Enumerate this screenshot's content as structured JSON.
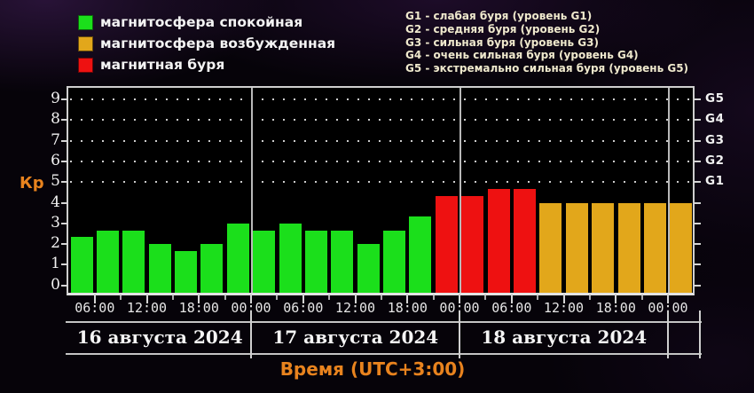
{
  "palette": {
    "quiet": "#1bdf1b",
    "excited": "#e2a71b",
    "storm": "#ee1111",
    "accent_orange": "#e8831e",
    "axis_line": "#cfcfcf"
  },
  "legend": {
    "items": [
      {
        "label": "магнитосфера спокойная",
        "level": "quiet"
      },
      {
        "label": "магнитосфера возбужденная",
        "level": "excited"
      },
      {
        "label": "магнитная буря",
        "level": "storm"
      }
    ]
  },
  "storm_levels": [
    "G1 - слабая буря (уровень G1)",
    "G2 - средняя буря (уровень G2)",
    "G3 - сильная буря (уровень G3)",
    "G4 - очень сильная буря (уровень G4)",
    "G5 - экстремально сильная буря (уровень G5)"
  ],
  "axis": {
    "y_label": "Кр",
    "x_label": "Время (UTC+3:00)",
    "y_ticks": [
      "0",
      "1",
      "2",
      "3",
      "4",
      "5",
      "6",
      "7",
      "8",
      "9"
    ],
    "g_ticks": [
      "G1",
      "G2",
      "G3",
      "G4",
      "G5"
    ]
  },
  "days": [
    {
      "label": "16 августа 2024",
      "times": [
        "06:00",
        "12:00",
        "18:00",
        "00:00"
      ],
      "bars": [
        {
          "kp": 2.33,
          "level": "quiet"
        },
        {
          "kp": 2.67,
          "level": "quiet"
        },
        {
          "kp": 2.67,
          "level": "quiet"
        },
        {
          "kp": 2.0,
          "level": "quiet"
        },
        {
          "kp": 1.67,
          "level": "quiet"
        },
        {
          "kp": 2.0,
          "level": "quiet"
        },
        {
          "kp": 3.0,
          "level": "quiet"
        }
      ]
    },
    {
      "label": "17 августа 2024",
      "times": [
        "06:00",
        "12:00",
        "18:00",
        "00:00"
      ],
      "bars": [
        {
          "kp": 2.67,
          "level": "quiet"
        },
        {
          "kp": 3.0,
          "level": "quiet"
        },
        {
          "kp": 2.67,
          "level": "quiet"
        },
        {
          "kp": 2.67,
          "level": "quiet"
        },
        {
          "kp": 2.0,
          "level": "quiet"
        },
        {
          "kp": 2.67,
          "level": "quiet"
        },
        {
          "kp": 3.33,
          "level": "quiet"
        },
        {
          "kp": 4.33,
          "level": "storm"
        }
      ]
    },
    {
      "label": "18 августа 2024",
      "times": [
        "06:00",
        "12:00",
        "18:00",
        "00:00"
      ],
      "bars": [
        {
          "kp": 4.33,
          "level": "storm"
        },
        {
          "kp": 4.67,
          "level": "storm"
        },
        {
          "kp": 4.67,
          "level": "storm"
        },
        {
          "kp": 4.0,
          "level": "excited"
        },
        {
          "kp": 4.0,
          "level": "excited"
        },
        {
          "kp": 4.0,
          "level": "excited"
        },
        {
          "kp": 4.0,
          "level": "excited"
        },
        {
          "kp": 4.0,
          "level": "excited"
        }
      ]
    }
  ],
  "trailing_bars": [
    {
      "kp": 4.0,
      "level": "excited"
    }
  ],
  "chart_data": {
    "type": "bar",
    "title": "",
    "ylabel": "Кр",
    "xlabel": "Время (UTC+3:00)",
    "ylim": [
      0,
      9
    ],
    "bar_interval_hours": 3,
    "grid": "dotted horizontal lines at Kp 5-9",
    "legend_position": "top-left",
    "legend": [
      "магнитосфера спокойная",
      "магнитосфера возбужденная",
      "магнитная буря"
    ],
    "right_axis_map": {
      "G1": 5,
      "G2": 6,
      "G3": 7,
      "G4": 8,
      "G5": 9
    },
    "series": [
      {
        "date": "16 августа 2024",
        "first_bar_start": "03:00",
        "kp": [
          2.33,
          2.67,
          2.67,
          2.0,
          1.67,
          2.0,
          3.0
        ],
        "colors": [
          "green",
          "green",
          "green",
          "green",
          "green",
          "green",
          "green"
        ]
      },
      {
        "date": "17 августа 2024",
        "first_bar_start": "00:00",
        "kp": [
          2.67,
          3.0,
          2.67,
          2.67,
          2.0,
          2.67,
          3.33,
          4.33
        ],
        "colors": [
          "green",
          "green",
          "green",
          "green",
          "green",
          "green",
          "green",
          "red"
        ]
      },
      {
        "date": "18 августа 2024",
        "first_bar_start": "00:00",
        "kp": [
          4.33,
          4.67,
          4.67,
          4.0,
          4.0,
          4.0,
          4.0,
          4.0
        ],
        "colors": [
          "red",
          "red",
          "red",
          "yellow",
          "yellow",
          "yellow",
          "yellow",
          "yellow"
        ]
      },
      {
        "date": "",
        "first_bar_start": "00:00",
        "kp": [
          4.0
        ],
        "colors": [
          "yellow"
        ]
      }
    ]
  }
}
